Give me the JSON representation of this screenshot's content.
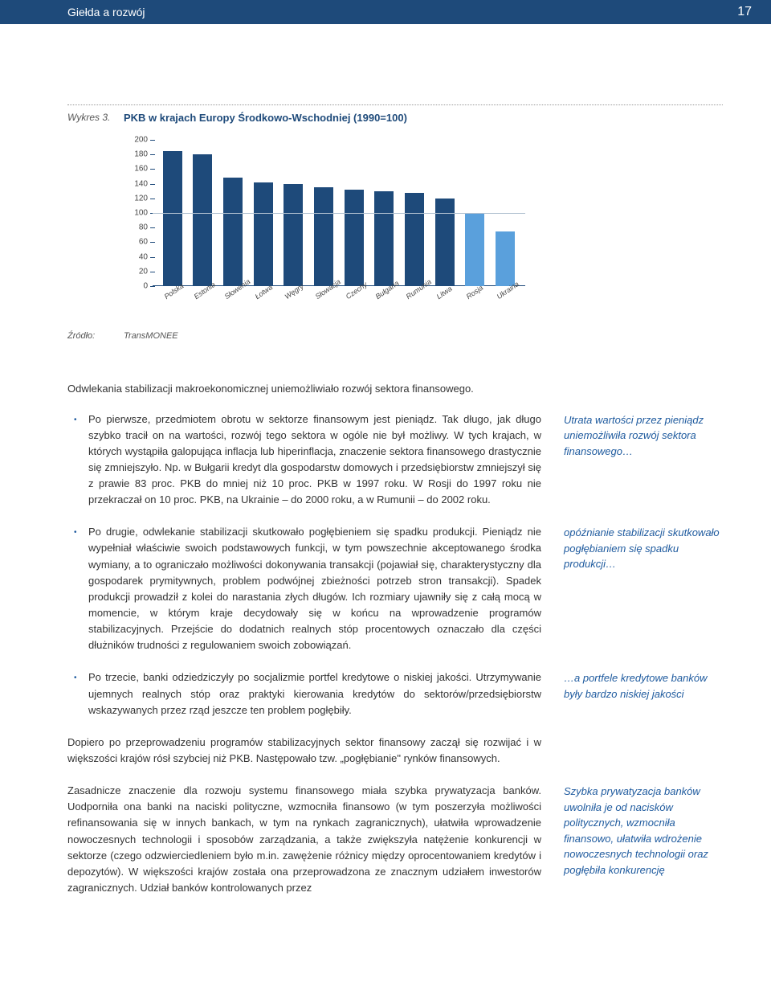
{
  "header": {
    "title": "Giełda a rozwój",
    "page": "17"
  },
  "figure": {
    "label": "Wykres 3.",
    "title": "PKB w krajach Europy Środkowo-Wschodniej (1990=100)",
    "source_label": "Źródło:",
    "source_value": "TransMONEE"
  },
  "chart": {
    "ylim": [
      0,
      200
    ],
    "ytick_step": 20,
    "refline": 100,
    "bar_color_dark": "#1e4a7a",
    "bar_color_light": "#5aa0dc",
    "categories": [
      "Polska",
      "Estonia",
      "Słowenia",
      "Łotwa",
      "Węgry",
      "Słowacja",
      "Czechy",
      "Bułgaria",
      "Rumunia",
      "Litwa",
      "Rosja",
      "Ukraina"
    ],
    "values": [
      185,
      180,
      148,
      142,
      140,
      135,
      132,
      130,
      128,
      120,
      100,
      75
    ],
    "light_indices": [
      10,
      11
    ]
  },
  "intro": "Odwlekania stabilizacji makroekonomicznej uniemożliwiało rozwój sektora finansowego.",
  "items": [
    {
      "text": "Po pierwsze, przedmiotem obrotu w sektorze finansowym jest pieniądz. Tak długo, jak długo szybko tracił on na wartości, rozwój tego sektora w ogóle nie był możliwy. W tych krajach, w których wystąpiła galopująca inflacja lub hiperinflacja, znaczenie sektora finansowego drastycznie się zmniejszyło. Np. w Bułgarii kredyt dla gospodarstw domowych i przedsiębiorstw zmniejszył się z prawie 83 proc. PKB do mniej niż 10 proc. PKB w 1997 roku. W Rosji do 1997 roku nie przekraczał on 10 proc. PKB, na Ukrainie – do 2000 roku, a w Rumunii – do 2002 roku.",
      "side": "Utrata wartości przez pieniądz uniemożliwiła rozwój sektora finansowego…"
    },
    {
      "text": "Po drugie, odwlekanie stabilizacji skutkowało pogłębieniem się spadku produkcji. Pieniądz nie wypełniał właściwie swoich podstawowych funkcji, w tym powszechnie akceptowanego środka wymiany, a to ograniczało możliwości dokonywania transakcji (pojawiał się, charakterystyczny dla gospodarek prymitywnych, problem podwójnej zbieżności potrzeb stron transakcji). Spadek produkcji prowadził z kolei do narastania złych długów. Ich rozmiary ujawniły się z całą mocą w momencie, w którym kraje decydowały się w końcu na wprowadzenie programów stabilizacyjnych. Przejście do dodatnich realnych stóp procentowych oznaczało dla części dłużników trudności z regulowaniem swoich zobowiązań.",
      "side": "opóźnianie stabilizacji skutkowało pogłębianiem się spadku produkcji…"
    },
    {
      "text": "Po trzecie, banki odziedziczyły po socjalizmie portfel kredytowe o niskiej jakości. Utrzymywanie ujemnych realnych stóp oraz praktyki kierowania kredytów do sektorów/przedsiębiorstw wskazywanych przez rząd jeszcze ten problem pogłębiły.",
      "side": "…a portfele kredytowe banków były bardzo niskiej jakości"
    }
  ],
  "para1": "Dopiero po przeprowadzeniu programów stabilizacyjnych sektor finansowy zaczął się rozwijać i w większości krajów rósł szybciej niż PKB. Następowało tzw. „pogłębianie\" rynków finansowych.",
  "final": {
    "text": "Zasadnicze znaczenie dla rozwoju systemu finansowego miała szybka prywatyzacja banków. Uodporniła ona banki na naciski polityczne, wzmocniła finansowo (w tym poszerzyła możliwości refinansowania się w innych bankach, w tym na rynkach zagranicznych), ułatwiła wprowadzenie nowoczesnych technologii i sposobów zarządzania, a także zwiększyła natężenie konkurencji w sektorze (czego odzwierciedleniem było m.in. zawężenie różnicy między oprocentowaniem kredytów i depozytów). W większości krajów została ona przeprowadzona ze znacznym udziałem inwestorów zagranicznych. Udział banków kontrolowanych przez",
    "side": "Szybka prywatyzacja banków uwolniła je od nacisków politycznych, wzmocniła finansowo, ułatwiła wdrożenie nowoczesnych technologii oraz pogłębiła konkurencję"
  }
}
